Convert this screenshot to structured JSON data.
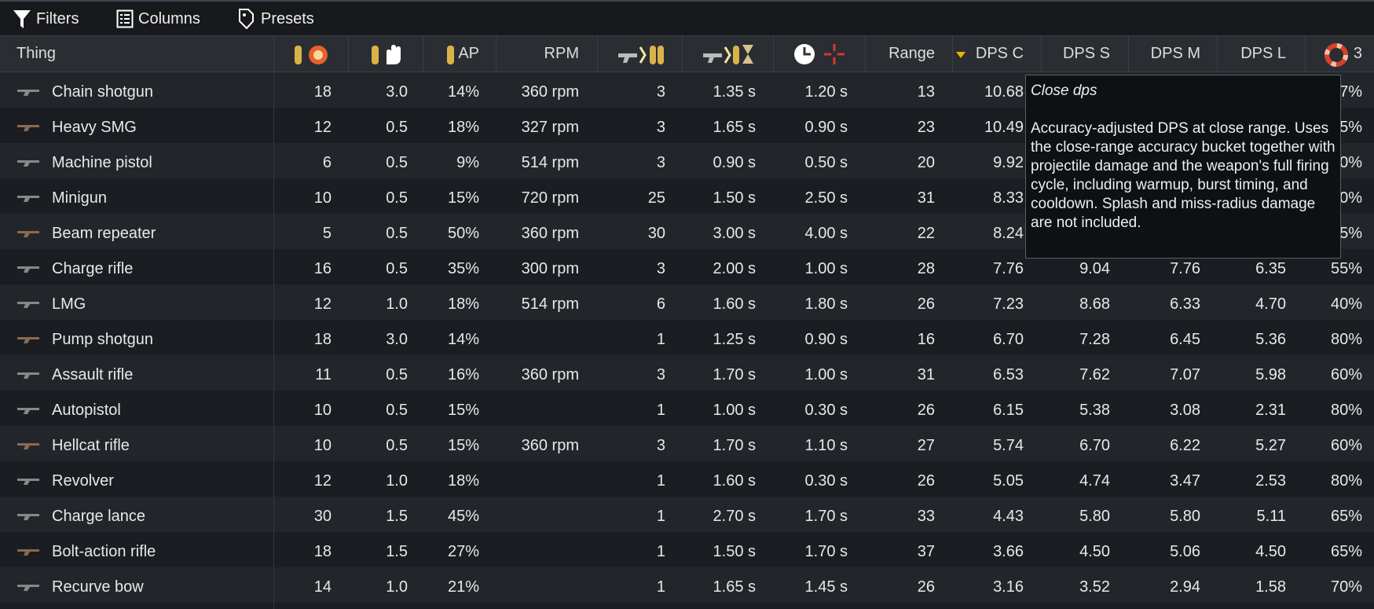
{
  "toolbar": {
    "buttons": [
      "Filters",
      "Columns",
      "Presets"
    ]
  },
  "table": {
    "columns": [
      "Thing",
      null,
      null,
      "AP",
      "RPM",
      null,
      null,
      null,
      "Range",
      "DPS C",
      "DPS S",
      "DPS M",
      "DPS L",
      "3"
    ],
    "rows": [
      {
        "name": "Chain shotgun",
        "cells": [
          "18",
          "3.0",
          "14%",
          "360 rpm",
          "3",
          "1.35 s",
          "1.20 s",
          "13",
          "10.68",
          null,
          null,
          null,
          "7%"
        ]
      },
      {
        "name": "Heavy SMG",
        "cells": [
          "12",
          "0.5",
          "18%",
          "327 rpm",
          "3",
          "1.65 s",
          "0.90 s",
          "23",
          "10.49",
          null,
          null,
          null,
          "5%"
        ]
      },
      {
        "name": "Machine pistol",
        "cells": [
          "6",
          "0.5",
          "9%",
          "514 rpm",
          "3",
          "0.90 s",
          "0.50 s",
          "20",
          "9.92",
          null,
          null,
          null,
          "0%"
        ]
      },
      {
        "name": "Minigun",
        "cells": [
          "10",
          "0.5",
          "15%",
          "720 rpm",
          "25",
          "1.50 s",
          "2.50 s",
          "31",
          "8.33",
          null,
          null,
          null,
          "0%"
        ]
      },
      {
        "name": "Beam repeater",
        "cells": [
          "5",
          "0.5",
          "50%",
          "360 rpm",
          "30",
          "3.00 s",
          "4.00 s",
          "22",
          "8.24",
          null,
          null,
          null,
          "5%"
        ]
      },
      {
        "name": "Charge rifle",
        "cells": [
          "16",
          "0.5",
          "35%",
          "300 rpm",
          "3",
          "2.00 s",
          "1.00 s",
          "28",
          "7.76",
          "9.04",
          "7.76",
          "6.35",
          "55%"
        ]
      },
      {
        "name": "LMG",
        "cells": [
          "12",
          "1.0",
          "18%",
          "514 rpm",
          "6",
          "1.60 s",
          "1.80 s",
          "26",
          "7.23",
          "8.68",
          "6.33",
          "4.70",
          "40%"
        ]
      },
      {
        "name": "Pump shotgun",
        "cells": [
          "18",
          "3.0",
          "14%",
          null,
          "1",
          "1.25 s",
          "0.90 s",
          "16",
          "6.70",
          "7.28",
          "6.45",
          "5.36",
          "80%"
        ]
      },
      {
        "name": "Assault rifle",
        "cells": [
          "11",
          "0.5",
          "16%",
          "360 rpm",
          "3",
          "1.70 s",
          "1.00 s",
          "31",
          "6.53",
          "7.62",
          "7.07",
          "5.98",
          "60%"
        ]
      },
      {
        "name": "Autopistol",
        "cells": [
          "10",
          "0.5",
          "15%",
          null,
          "1",
          "1.00 s",
          "0.30 s",
          "26",
          "6.15",
          "5.38",
          "3.08",
          "2.31",
          "80%"
        ]
      },
      {
        "name": "Hellcat rifle",
        "cells": [
          "10",
          "0.5",
          "15%",
          "360 rpm",
          "3",
          "1.70 s",
          "1.10 s",
          "27",
          "5.74",
          "6.70",
          "6.22",
          "5.27",
          "60%"
        ]
      },
      {
        "name": "Revolver",
        "cells": [
          "12",
          "1.0",
          "18%",
          null,
          "1",
          "1.60 s",
          "0.30 s",
          "26",
          "5.05",
          "4.74",
          "3.47",
          "2.53",
          "80%"
        ]
      },
      {
        "name": "Charge lance",
        "cells": [
          "30",
          "1.5",
          "45%",
          null,
          "1",
          "2.70 s",
          "1.70 s",
          "33",
          "4.43",
          "5.80",
          "5.80",
          "5.11",
          "65%"
        ]
      },
      {
        "name": "Bolt-action rifle",
        "cells": [
          "18",
          "1.5",
          "27%",
          null,
          "1",
          "1.50 s",
          "1.70 s",
          "37",
          "3.66",
          "4.50",
          "5.06",
          "4.50",
          "65%"
        ]
      },
      {
        "name": "Recurve bow",
        "cells": [
          "14",
          "1.0",
          "21%",
          null,
          "1",
          "1.65 s",
          "1.45 s",
          "26",
          "3.16",
          "3.52",
          "2.94",
          "1.58",
          "70%"
        ]
      }
    ]
  },
  "tooltip": {
    "title": "Close dps",
    "body": "Accuracy-adjusted DPS at close range. Uses the close-range accuracy bucket together with projectile damage and the weapon's full firing cycle, including warmup, burst timing, and cooldown. Splash and miss-radius damage are not included."
  }
}
